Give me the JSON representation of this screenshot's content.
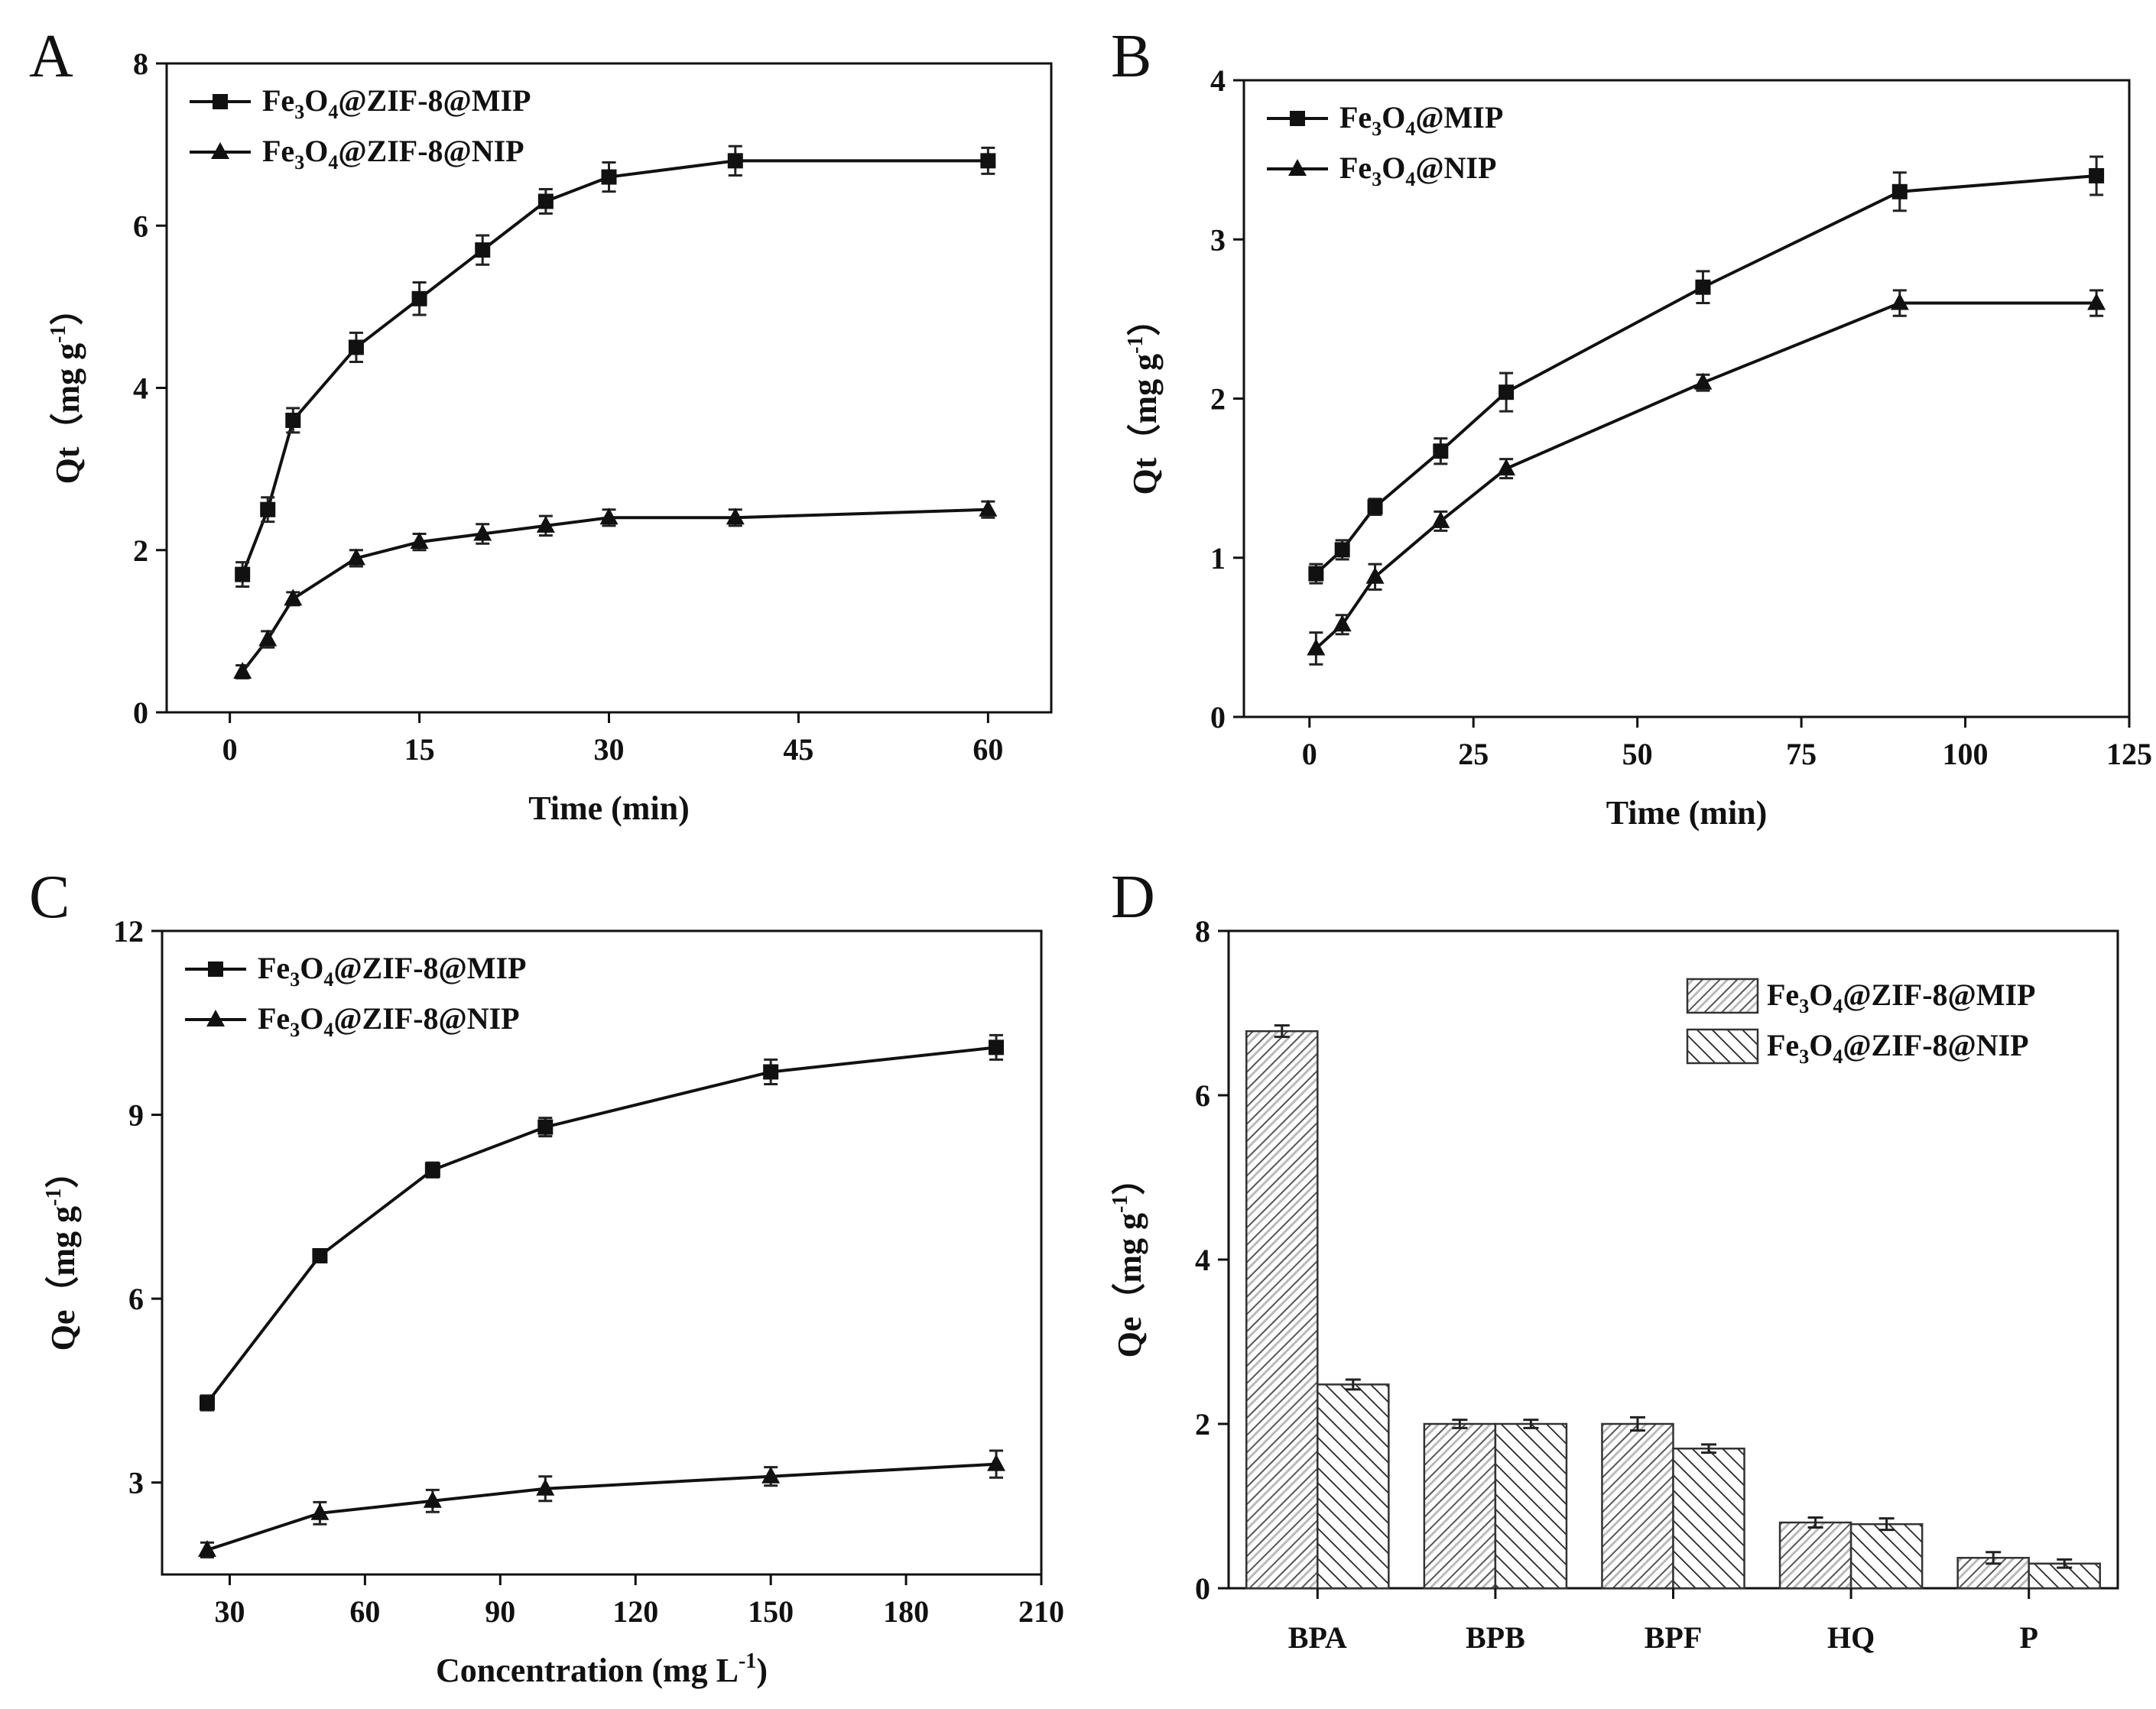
{
  "chart_data": [
    {
      "panel": "A",
      "type": "line",
      "xlabel": "Time (min)",
      "ylabel": "Qt（mg g-1）",
      "xlim": [
        -5,
        65
      ],
      "ylim": [
        0,
        8
      ],
      "xticks": [
        0,
        15,
        30,
        45,
        60
      ],
      "yticks": [
        0,
        2,
        4,
        6,
        8
      ],
      "legend_position": "top-left",
      "series": [
        {
          "name": "Fe3O4@ZIF-8@MIP",
          "label_parts": [
            "Fe",
            "3",
            "O",
            "4",
            "@ZIF-8@MIP"
          ],
          "marker": "square",
          "x": [
            1,
            3,
            5,
            10,
            15,
            20,
            25,
            30,
            40,
            60
          ],
          "y": [
            1.7,
            2.5,
            3.6,
            4.5,
            5.1,
            5.7,
            6.3,
            6.6,
            6.8,
            6.8
          ],
          "err": [
            0.15,
            0.15,
            0.15,
            0.18,
            0.2,
            0.18,
            0.15,
            0.18,
            0.18,
            0.16
          ]
        },
        {
          "name": "Fe3O4@ZIF-8@NIP",
          "label_parts": [
            "Fe",
            "3",
            "O",
            "4",
            "@ZIF-8@NIP"
          ],
          "marker": "triangle",
          "x": [
            1,
            3,
            5,
            10,
            15,
            20,
            25,
            30,
            40,
            60
          ],
          "y": [
            0.5,
            0.9,
            1.4,
            1.9,
            2.1,
            2.2,
            2.3,
            2.4,
            2.4,
            2.5
          ],
          "err": [
            0.08,
            0.1,
            0.08,
            0.1,
            0.1,
            0.12,
            0.12,
            0.1,
            0.1,
            0.1
          ]
        }
      ]
    },
    {
      "panel": "B",
      "type": "line",
      "xlabel": "Time (min)",
      "ylabel": "Qt（mg g-1）",
      "xlim": [
        -10,
        125
      ],
      "ylim": [
        0,
        4
      ],
      "xticks": [
        0,
        25,
        50,
        75,
        100,
        125
      ],
      "yticks": [
        0,
        1,
        2,
        3,
        4
      ],
      "legend_position": "top-left",
      "series": [
        {
          "name": "Fe3O4@MIP",
          "label_parts": [
            "Fe",
            "3",
            "O",
            "4",
            "@MIP"
          ],
          "marker": "square",
          "x": [
            1,
            5,
            10,
            20,
            30,
            60,
            90,
            120
          ],
          "y": [
            0.9,
            1.05,
            1.32,
            1.67,
            2.04,
            2.7,
            3.3,
            3.4
          ],
          "err": [
            0.06,
            0.06,
            0.05,
            0.08,
            0.12,
            0.1,
            0.12,
            0.12
          ]
        },
        {
          "name": "Fe3O4@NIP",
          "label_parts": [
            "Fe",
            "3",
            "O",
            "4",
            "@NIP"
          ],
          "marker": "triangle",
          "x": [
            1,
            5,
            10,
            20,
            30,
            60,
            90,
            120
          ],
          "y": [
            0.43,
            0.58,
            0.88,
            1.23,
            1.56,
            2.1,
            2.6,
            2.6
          ],
          "err": [
            0.1,
            0.06,
            0.08,
            0.06,
            0.06,
            0.05,
            0.08,
            0.08
          ]
        }
      ]
    },
    {
      "panel": "C",
      "type": "line",
      "xlabel": "Concentration (mg L-1)",
      "ylabel": "Qe（mg g-1）",
      "xlim": [
        15,
        210
      ],
      "ylim": [
        1.5,
        12
      ],
      "xticks": [
        30,
        60,
        90,
        120,
        150,
        180,
        210
      ],
      "yticks": [
        3,
        6,
        9,
        12
      ],
      "legend_position": "top-left",
      "series": [
        {
          "name": "Fe3O4@ZIF-8@MIP",
          "label_parts": [
            "Fe",
            "3",
            "O",
            "4",
            "@ZIF-8@MIP"
          ],
          "marker": "square",
          "x": [
            25,
            50,
            75,
            100,
            150,
            200
          ],
          "y": [
            4.3,
            6.7,
            8.1,
            8.8,
            9.7,
            10.1
          ],
          "err": [
            0.12,
            0.1,
            0.12,
            0.15,
            0.2,
            0.2
          ]
        },
        {
          "name": "Fe3O4@ZIF-8@NIP",
          "label_parts": [
            "Fe",
            "3",
            "O",
            "4",
            "@ZIF-8@NIP"
          ],
          "marker": "triangle",
          "x": [
            25,
            50,
            75,
            100,
            150,
            200
          ],
          "y": [
            1.9,
            2.5,
            2.7,
            2.9,
            3.1,
            3.3
          ],
          "err": [
            0.12,
            0.18,
            0.18,
            0.2,
            0.15,
            0.22
          ]
        }
      ]
    },
    {
      "panel": "D",
      "type": "bar",
      "xlabel": "",
      "ylabel": "Qe（mg g-1）",
      "ylim": [
        0,
        8
      ],
      "yticks": [
        0,
        2,
        4,
        6,
        8
      ],
      "categories": [
        "BPA",
        "BPB",
        "BPF",
        "HQ",
        "P"
      ],
      "legend_position": "top-right",
      "series": [
        {
          "name": "Fe3O4@ZIF-8@MIP",
          "label_parts": [
            "Fe",
            "3",
            "O",
            "4",
            "@ZIF-8@MIP"
          ],
          "pattern": "forward-hatch",
          "values": [
            6.78,
            2.0,
            2.0,
            0.8,
            0.37
          ],
          "err": [
            0.07,
            0.05,
            0.08,
            0.06,
            0.07
          ]
        },
        {
          "name": "Fe3O4@ZIF-8@NIP",
          "label_parts": [
            "Fe",
            "3",
            "O",
            "4",
            "@ZIF-8@NIP"
          ],
          "pattern": "back-hatch",
          "values": [
            2.48,
            2.0,
            1.7,
            0.78,
            0.3
          ],
          "err": [
            0.06,
            0.05,
            0.05,
            0.07,
            0.05
          ]
        }
      ]
    }
  ]
}
